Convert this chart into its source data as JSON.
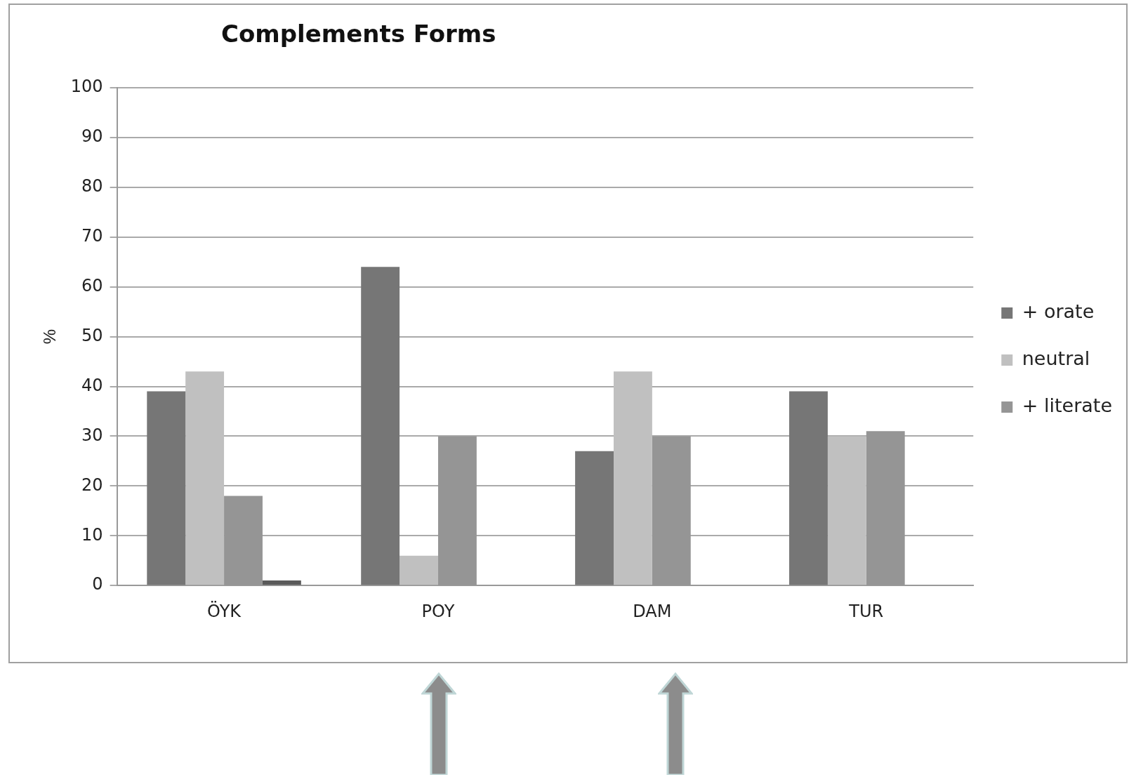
{
  "chart_data": {
    "type": "bar",
    "title": "Complements Forms",
    "ylabel": "%",
    "categories": [
      "ÖYK",
      "POY",
      "DAM",
      "TUR"
    ],
    "series": [
      {
        "name": "+ orate",
        "color": "#767676",
        "values": [
          39,
          64,
          27,
          39
        ]
      },
      {
        "name": "neutral",
        "color": "#c0c0c0",
        "values": [
          43,
          6,
          43,
          30
        ]
      },
      {
        "name": "+ literate",
        "color": "#959595",
        "values": [
          18,
          30,
          30,
          31
        ]
      },
      {
        "color": "#5a5a5a",
        "values": [
          1,
          null,
          null,
          null
        ]
      }
    ],
    "ylim": [
      0,
      100
    ],
    "yticks": [
      0,
      10,
      20,
      30,
      40,
      50,
      60,
      70,
      80,
      90,
      100
    ],
    "grid": "y",
    "legend": "right"
  }
}
